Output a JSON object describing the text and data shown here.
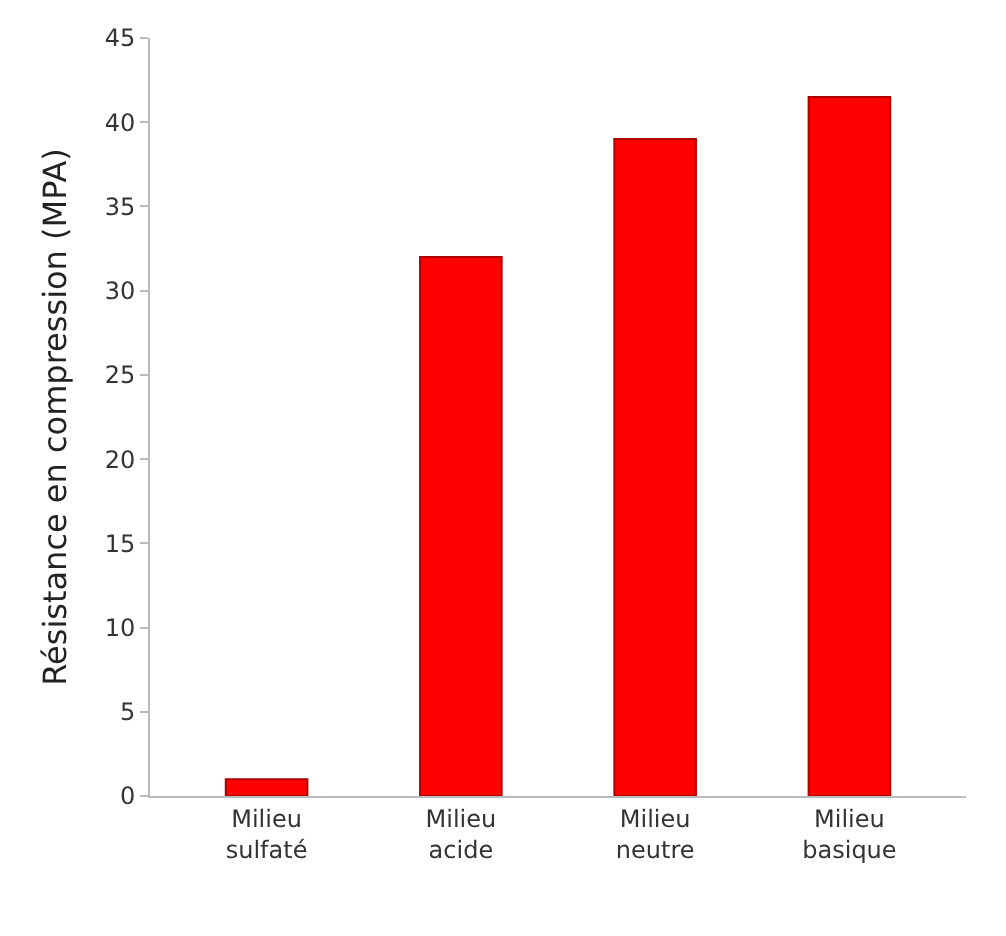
{
  "chart_data": {
    "type": "bar",
    "ylabel": "Résistance en compression (MPA)",
    "categories": [
      "Milieu sulfaté",
      "Milieu acide",
      "Milieu neutre",
      "Milieu basique"
    ],
    "values": [
      1,
      32,
      39,
      41.5
    ],
    "color": "#ff0000",
    "ylim": [
      0,
      45
    ],
    "yticks": [
      0,
      5,
      10,
      15,
      20,
      25,
      30,
      35,
      40,
      45
    ],
    "grid": false
  }
}
